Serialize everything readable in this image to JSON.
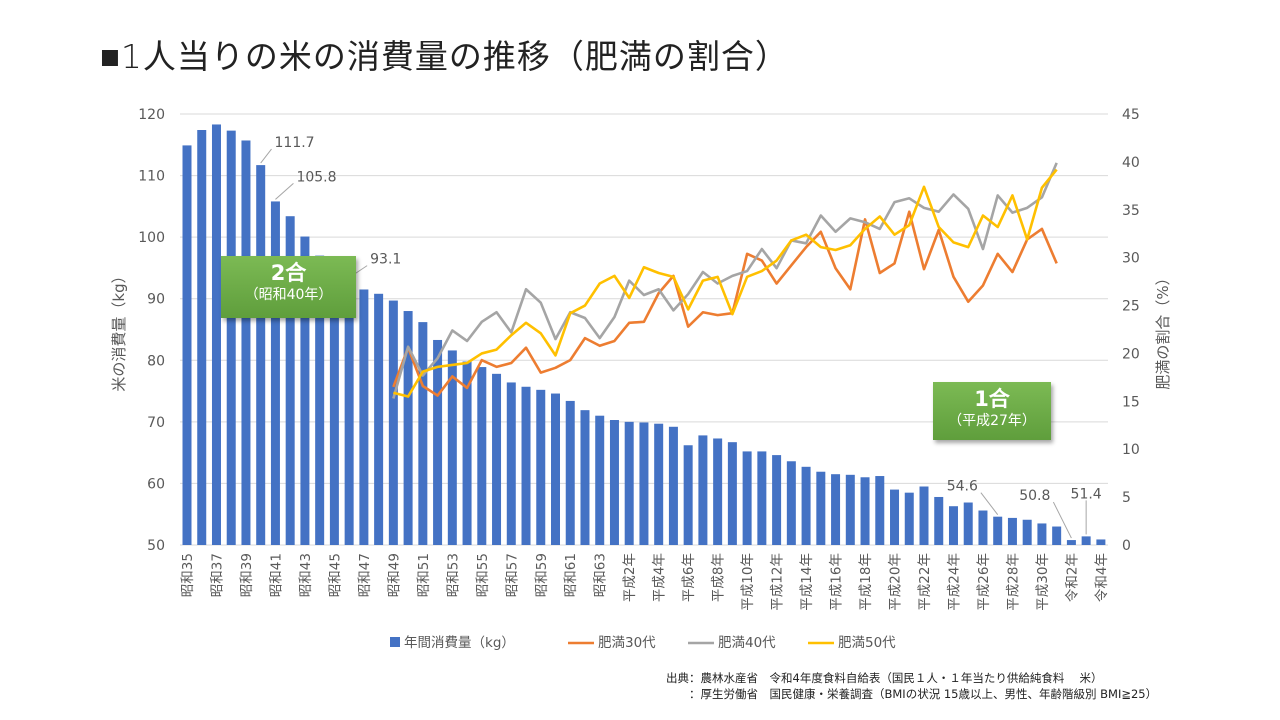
{
  "title": "■1人当りの米の消費量の推移（肥満の割合）",
  "callouts": [
    {
      "big": "2合",
      "small": "（昭和40年）"
    },
    {
      "big": "1合",
      "small": "（平成27年）"
    }
  ],
  "source": {
    "line1": "出典：農林水産省　令和4年度食料自給表（国民１人・１年当たり供給純食料　 米）",
    "line2": "　　：厚生労働省　国民健康・栄養調査（BMIの状況 15歳以上、男性、年齢階級別 BMI≧25）"
  },
  "colors": {
    "bar": "#4472C4",
    "obese30": "#ED7D31",
    "obese40": "#A5A5A5",
    "obese50": "#FFC000",
    "callout": "#70AD47"
  },
  "chart_data": {
    "type": "bar+line",
    "ylabel": "米の消費量（kg）",
    "y2label": "肥満の割合（%）",
    "ylim": [
      50,
      120
    ],
    "yticks": [
      50,
      60,
      70,
      80,
      90,
      100,
      110,
      120
    ],
    "y2lim": [
      0,
      45
    ],
    "y2ticks": [
      0,
      5,
      10,
      15,
      20,
      25,
      30,
      35,
      40,
      45
    ],
    "grid": true,
    "legend_position": "bottom",
    "tick_labels": [
      "昭和35",
      "昭和37",
      "昭和39",
      "昭和41",
      "昭和43",
      "昭和45",
      "昭和47",
      "昭和49",
      "昭和51",
      "昭和53",
      "昭和55",
      "昭和57",
      "昭和59",
      "昭和61",
      "昭和63",
      "平成2年",
      "平成4年",
      "平成6年",
      "平成8年",
      "平成10年",
      "平成12年",
      "平成14年",
      "平成16年",
      "平成18年",
      "平成20年",
      "平成22年",
      "平成24年",
      "平成26年",
      "平成28年",
      "平成30年",
      "令和2年",
      "令和4年"
    ],
    "years": [
      1960,
      1961,
      1962,
      1963,
      1964,
      1965,
      1966,
      1967,
      1968,
      1969,
      1970,
      1971,
      1972,
      1973,
      1974,
      1975,
      1976,
      1977,
      1978,
      1979,
      1980,
      1981,
      1982,
      1983,
      1984,
      1985,
      1986,
      1987,
      1988,
      1989,
      1990,
      1991,
      1992,
      1993,
      1994,
      1995,
      1996,
      1997,
      1998,
      1999,
      2000,
      2001,
      2002,
      2003,
      2004,
      2005,
      2006,
      2007,
      2008,
      2009,
      2010,
      2011,
      2012,
      2013,
      2014,
      2015,
      2016,
      2017,
      2018,
      2019,
      2020,
      2021,
      2022
    ],
    "bar_series": {
      "name": "年間消費量（kg）",
      "values": [
        114.9,
        117.4,
        118.3,
        117.3,
        115.7,
        111.7,
        105.8,
        103.4,
        100.1,
        97.0,
        95.1,
        93.1,
        91.5,
        90.8,
        89.7,
        88.0,
        86.2,
        83.3,
        81.6,
        79.8,
        78.9,
        77.8,
        76.4,
        75.7,
        75.2,
        74.6,
        73.4,
        71.9,
        71.0,
        70.3,
        70.0,
        69.9,
        69.7,
        69.2,
        66.2,
        67.8,
        67.3,
        66.7,
        65.2,
        65.2,
        64.6,
        63.6,
        62.7,
        61.9,
        61.5,
        61.4,
        61.0,
        61.2,
        59.0,
        58.5,
        59.5,
        57.8,
        56.3,
        56.9,
        55.6,
        54.6,
        54.4,
        54.1,
        53.5,
        53.0,
        50.8,
        51.4,
        50.9
      ]
    },
    "data_labels": [
      {
        "year": 1965,
        "text": "111.7"
      },
      {
        "year": 1966,
        "text": "105.8"
      },
      {
        "year": 1971,
        "text": "93.1"
      },
      {
        "year": 2015,
        "text": "54.6"
      },
      {
        "year": 2020,
        "text": "50.8"
      },
      {
        "year": 2021,
        "text": "51.4"
      }
    ],
    "line_years_start": 1974,
    "line_series": [
      {
        "name": "肥満30代",
        "color": "#ED7D31",
        "values": [
          16.5,
          20.6,
          16.6,
          15.6,
          17.6,
          16.4,
          19.3,
          18.6,
          19.0,
          20.6,
          18.0,
          18.5,
          19.3,
          21.6,
          20.8,
          21.3,
          23.2,
          23.3,
          26.3,
          28.1,
          22.8,
          24.3,
          24.0,
          24.2,
          30.4,
          29.7,
          27.3,
          29.2,
          31.1,
          32.7,
          28.9,
          26.7,
          34.0,
          28.4,
          29.4,
          34.8,
          28.8,
          32.9,
          28.0,
          25.4,
          27.1,
          30.4,
          28.5,
          31.9,
          33.0,
          29.4
        ]
      },
      {
        "name": "肥満40代",
        "color": "#A5A5A5",
        "values": [
          15.3,
          20.7,
          17.7,
          19.5,
          22.4,
          21.3,
          23.3,
          24.3,
          22.2,
          26.7,
          25.3,
          21.5,
          24.3,
          23.7,
          21.6,
          23.8,
          27.6,
          26.1,
          26.7,
          24.5,
          26.2,
          28.5,
          27.3,
          28.1,
          28.6,
          30.9,
          28.9,
          31.8,
          31.5,
          34.4,
          32.7,
          34.1,
          33.7,
          33.0,
          35.8,
          36.2,
          35.2,
          34.8,
          36.6,
          35.1,
          30.9,
          36.5,
          34.7,
          35.2,
          36.3,
          39.9
        ]
      },
      {
        "name": "肥満50代",
        "color": "#FFC000",
        "values": [
          15.9,
          15.5,
          18.1,
          18.6,
          18.8,
          19.0,
          20.0,
          20.4,
          21.9,
          23.2,
          22.1,
          19.8,
          24.2,
          25.0,
          27.3,
          28.1,
          25.8,
          29.0,
          28.4,
          28.0,
          24.6,
          27.6,
          28.0,
          24.1,
          28.0,
          28.6,
          29.7,
          31.8,
          32.4,
          31.1,
          30.8,
          31.3,
          33.0,
          34.3,
          32.4,
          33.4,
          37.4,
          33.2,
          31.6,
          31.1,
          34.4,
          33.2,
          36.5,
          31.9,
          37.3,
          39.2
        ]
      }
    ]
  }
}
